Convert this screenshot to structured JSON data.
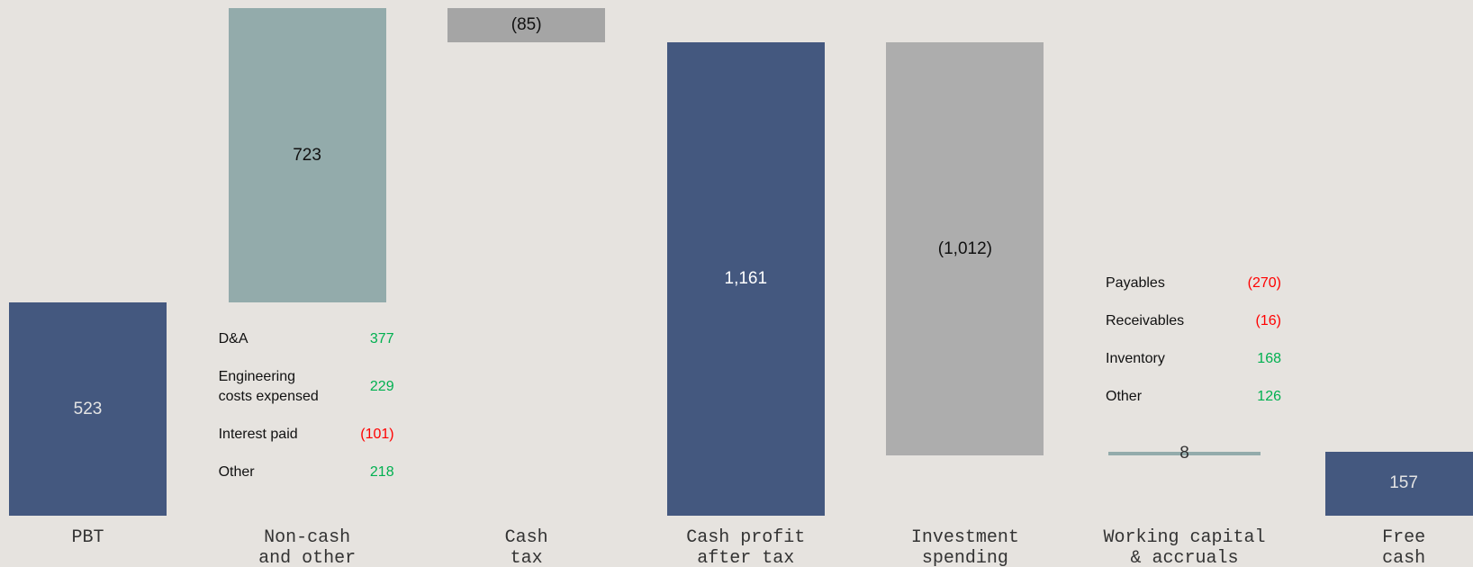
{
  "chart_data": {
    "type": "waterfall",
    "categories": [
      "PBT",
      "Non-cash\nand other",
      "Cash\ntax",
      "Cash profit\nafter tax",
      "Investment\nspending",
      "Working capital\n& accruals",
      "Free\ncash flow"
    ],
    "values": [
      523,
      723,
      -85,
      1161,
      -1012,
      8,
      157
    ],
    "value_labels": [
      "523",
      "723",
      "(85)",
      "1,161",
      "(1,012)",
      "8",
      "157"
    ],
    "totals": [
      false,
      false,
      false,
      true,
      false,
      false,
      true
    ],
    "colors": [
      "#44587f",
      "#93abab",
      "#a5a5a5",
      "#44587f",
      "#adadad",
      "#93abab",
      "#44587f"
    ],
    "label_colors": [
      "#e4e4e4",
      "#111111",
      "#111111",
      "#ffffff",
      "#111111",
      "#333333",
      "#e4e4e4"
    ],
    "positive_color": "#00b050",
    "negative_color": "#ff0000",
    "details": [
      null,
      [
        {
          "name": "D&A",
          "value": 377,
          "value_label": "377"
        },
        {
          "name": "Engineering\ncosts expensed",
          "value": 229,
          "value_label": "229"
        },
        {
          "name": "Interest paid",
          "value": -101,
          "value_label": "(101)"
        },
        {
          "name": "Other",
          "value": 218,
          "value_label": "218"
        }
      ],
      null,
      null,
      null,
      [
        {
          "name": "Payables",
          "value": -270,
          "value_label": "(270)"
        },
        {
          "name": "Receivables",
          "value": -16,
          "value_label": "(16)"
        },
        {
          "name": "Inventory",
          "value": 168,
          "value_label": "168"
        },
        {
          "name": "Other",
          "value": 126,
          "value_label": "126"
        }
      ],
      null
    ]
  }
}
